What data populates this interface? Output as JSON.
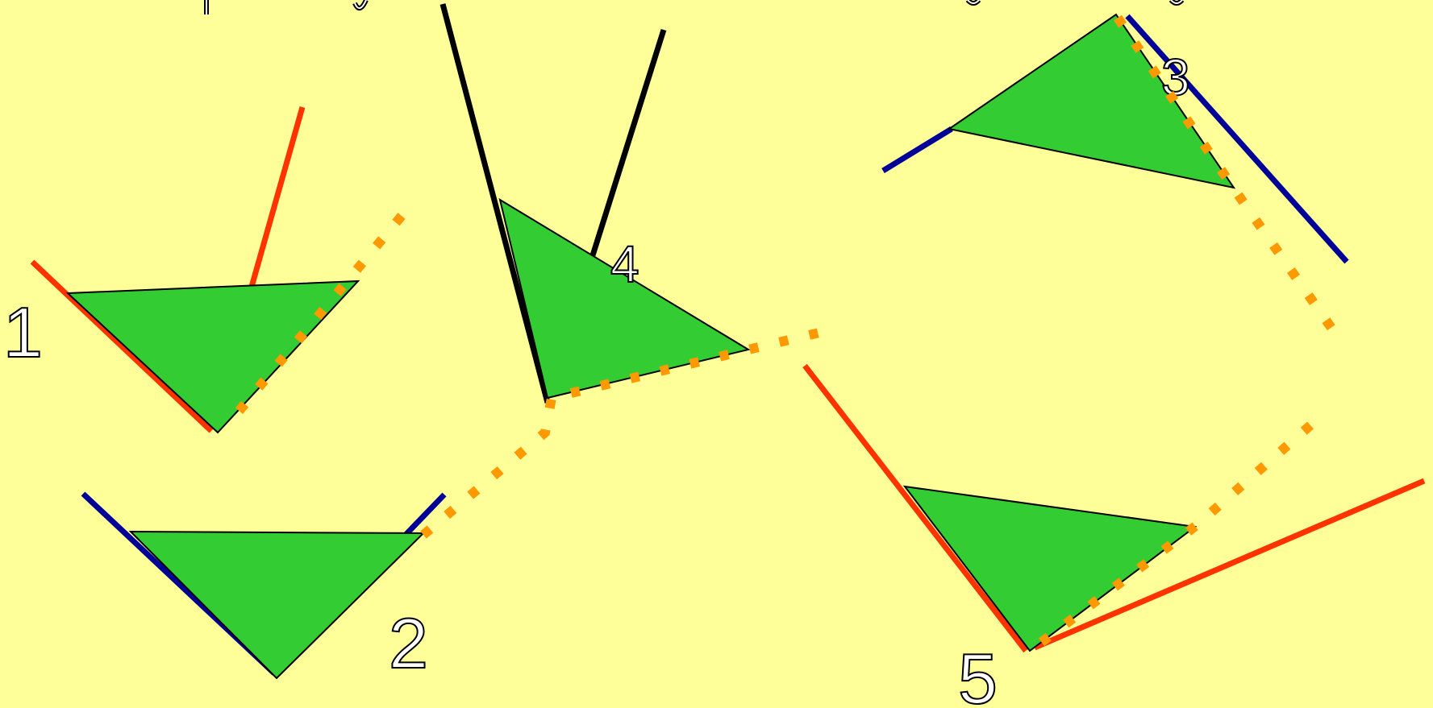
{
  "background_color": "#ffff99",
  "colors": {
    "triangle_fill": "#33cc33",
    "outline": "#000000",
    "red_line": "#ff3300",
    "blue_line": "#000099",
    "black_line": "#000000",
    "dotted_path": "#ff9900",
    "label_fill": "#ffffff"
  },
  "labels": {
    "one": "1",
    "two": "2",
    "three": "3",
    "four": "4",
    "five": "5"
  }
}
